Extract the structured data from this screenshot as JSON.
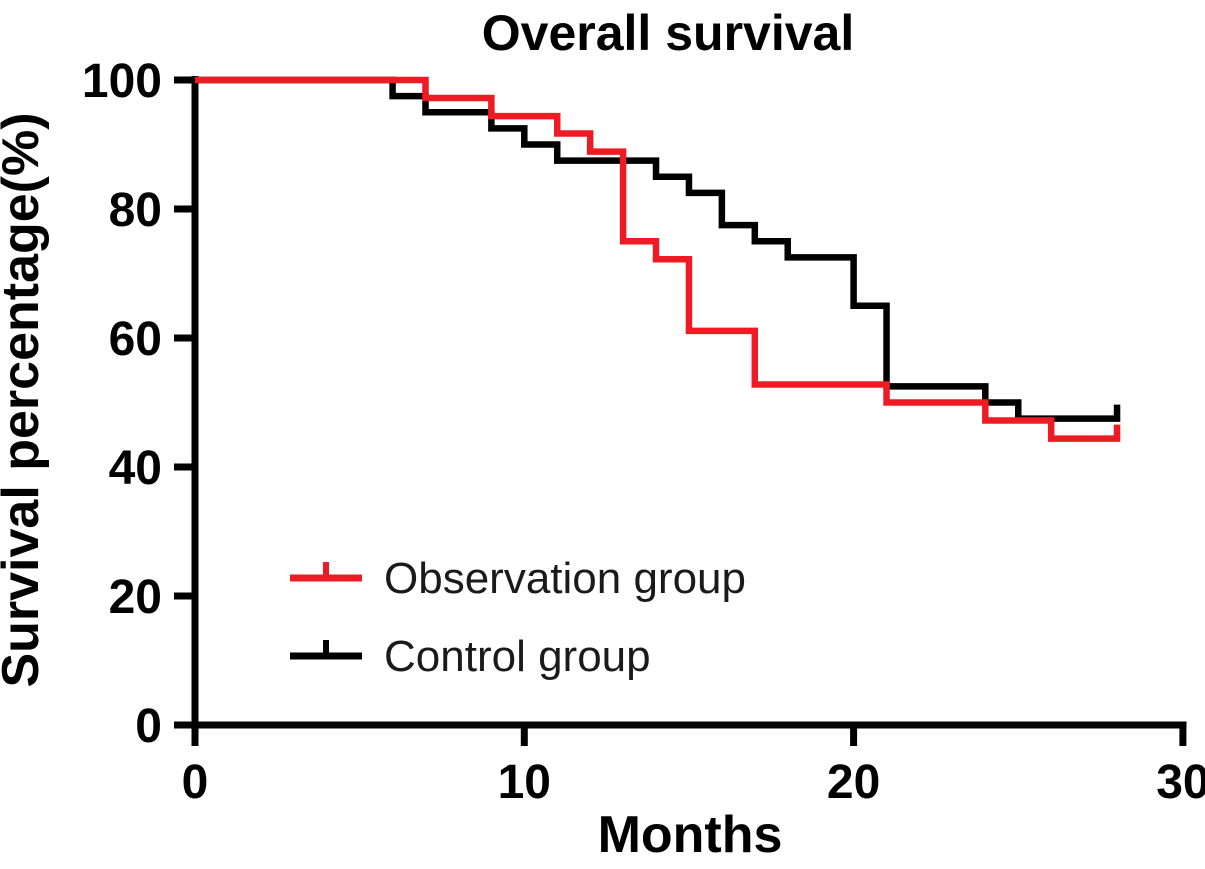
{
  "title": "Overall survival",
  "chart_data": {
    "type": "line",
    "subtype": "kaplan-meier-step-curve",
    "title": "Overall survival",
    "xlabel": "Months",
    "ylabel": "Survival percentage(%)",
    "xlim": [
      0,
      30
    ],
    "ylim": [
      0,
      100
    ],
    "x_ticks": [
      0,
      10,
      20,
      30
    ],
    "y_ticks": [
      0,
      20,
      40,
      60,
      80,
      100
    ],
    "grid": false,
    "legend_position": "inside-lower-left",
    "series": [
      {
        "name": "Observation group",
        "color": "#ed1c24",
        "steps": [
          [
            0,
            100
          ],
          [
            7,
            97.2
          ],
          [
            9,
            94.4
          ],
          [
            11,
            91.7
          ],
          [
            12,
            88.9
          ],
          [
            13,
            75.0
          ],
          [
            14,
            72.2
          ],
          [
            15,
            61.1
          ],
          [
            17,
            52.8
          ],
          [
            21,
            50.0
          ],
          [
            24,
            47.2
          ],
          [
            26,
            44.4
          ]
        ],
        "end_time": 28,
        "end_censor_tick": true
      },
      {
        "name": "Control group",
        "color": "#000000",
        "steps": [
          [
            0,
            100
          ],
          [
            6,
            97.5
          ],
          [
            7,
            95.0
          ],
          [
            9,
            92.5
          ],
          [
            10,
            90.0
          ],
          [
            11,
            87.5
          ],
          [
            14,
            85.0
          ],
          [
            15,
            82.5
          ],
          [
            16,
            77.5
          ],
          [
            17,
            75.0
          ],
          [
            18,
            72.5
          ],
          [
            20,
            65.0
          ],
          [
            21,
            52.5
          ],
          [
            24,
            50.0
          ],
          [
            25,
            47.5
          ]
        ],
        "end_time": 28,
        "end_censor_tick": true
      }
    ]
  }
}
